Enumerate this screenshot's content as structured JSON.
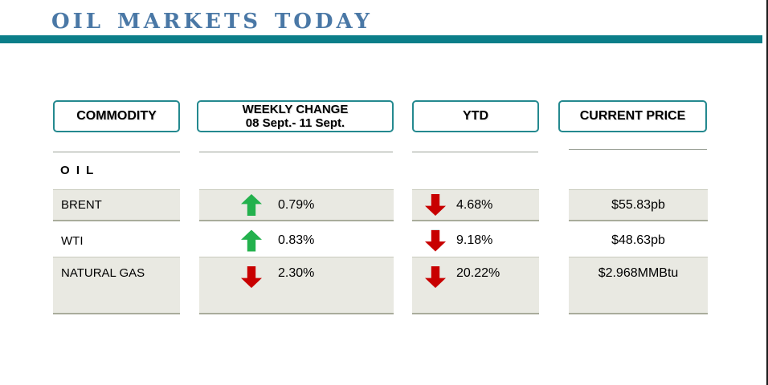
{
  "title": "Oil markets today",
  "colors": {
    "title_blue": "#4a78a6",
    "rule_teal": "#0b7e89",
    "header_border_teal": "#24898f",
    "row_shade": "#e9e9e2",
    "arrow_up_green": "#23b14d",
    "arrow_down_red": "#c80000"
  },
  "table": {
    "headers": {
      "commodity": "COMMODITY",
      "weekly_line1": "WEEKLY CHANGE",
      "weekly_line2": "08 Sept.- 11 Sept.",
      "ytd": "YTD",
      "current_price": "CURRENT PRICE"
    },
    "section_label": "O I L",
    "rows": [
      {
        "commodity": "BRENT",
        "weekly_change": {
          "direction": "up",
          "value": "0.79%"
        },
        "ytd": {
          "direction": "down",
          "value": "4.68%"
        },
        "current_price": "$55.83pb"
      },
      {
        "commodity": "WTI",
        "weekly_change": {
          "direction": "up",
          "value": "0.83%"
        },
        "ytd": {
          "direction": "down",
          "value": "9.18%"
        },
        "current_price": "$48.63pb"
      },
      {
        "commodity": "NATURAL GAS",
        "weekly_change": {
          "direction": "down",
          "value": "2.30%"
        },
        "ytd": {
          "direction": "down",
          "value": "20.22%"
        },
        "current_price": "$2.968MMBtu"
      }
    ]
  }
}
